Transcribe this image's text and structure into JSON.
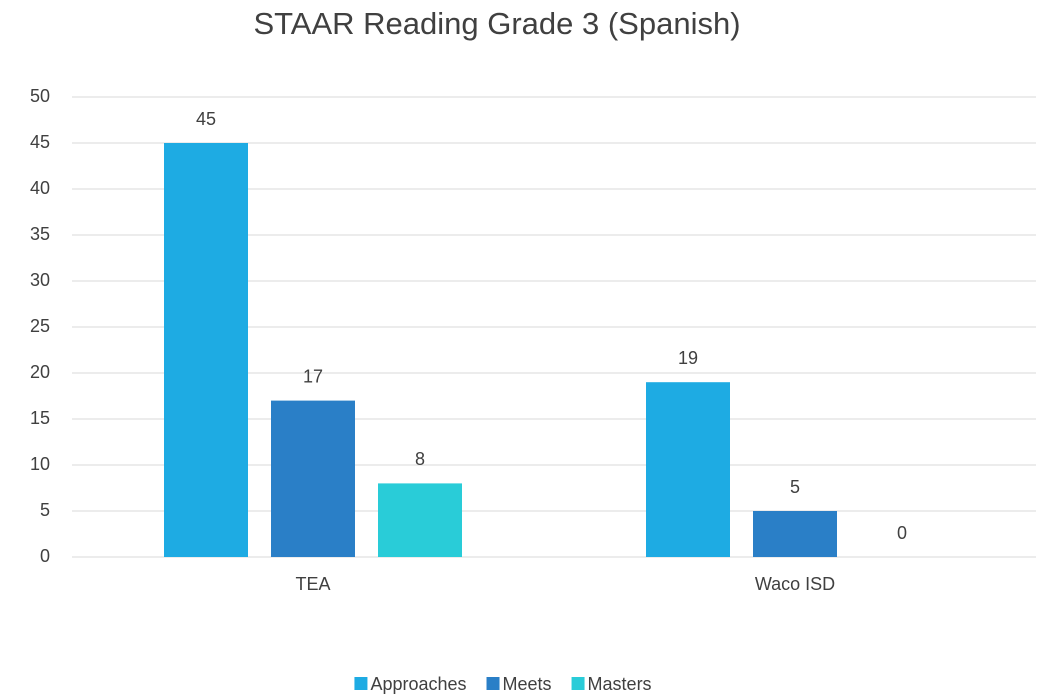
{
  "chart_data": {
    "type": "bar",
    "title": "STAAR Reading Grade 3 (Spanish)",
    "categories": [
      "TEA",
      "Waco ISD"
    ],
    "series": [
      {
        "name": "Approaches",
        "color": "#1eabe3",
        "values": [
          45,
          19
        ]
      },
      {
        "name": "Meets",
        "color": "#2a7fc7",
        "values": [
          17,
          5
        ]
      },
      {
        "name": "Masters",
        "color": "#29ccd8",
        "values": [
          8,
          0
        ]
      }
    ],
    "ylim": [
      0,
      50
    ],
    "yticks": [
      0,
      5,
      10,
      15,
      20,
      25,
      30,
      35,
      40,
      45,
      50
    ],
    "grid": true,
    "legend": "bottom"
  }
}
